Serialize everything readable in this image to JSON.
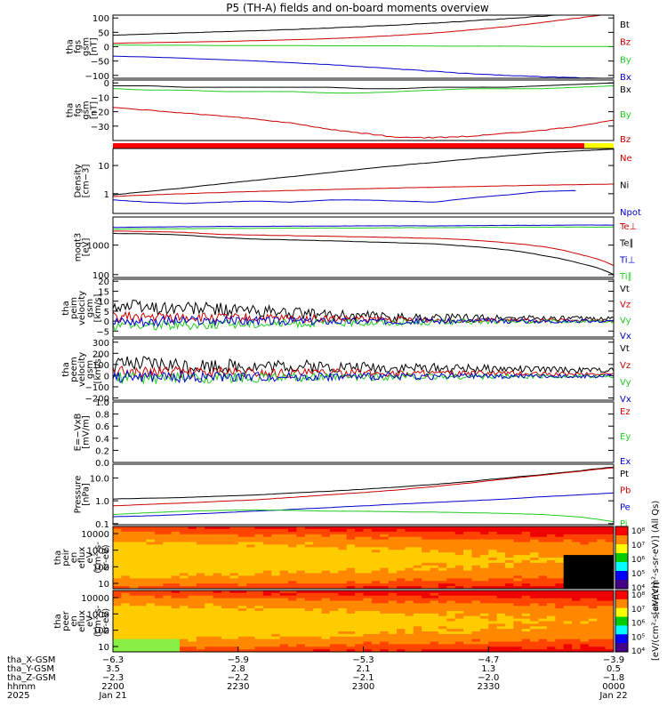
{
  "title": "P5 (TH-A) fields and on-board moments overview",
  "colors": {
    "black": "#000000",
    "red": "#cc0000",
    "green": "#22cc22",
    "blue": "#0000cc",
    "yellow": "#ffff00",
    "bar_red": "#ff0000"
  },
  "chart_data": [
    {
      "type": "line",
      "ylabel": [
        "tha",
        "fgs",
        "gsm",
        "[nT]"
      ],
      "yticks": [
        "100",
        "50",
        "0",
        "−50",
        "−100"
      ],
      "ylim": [
        -110,
        110
      ],
      "series": [
        {
          "name": "Bt",
          "color": "black",
          "values": [
            40,
            44,
            48,
            52,
            56,
            60,
            65,
            70,
            76,
            82,
            90,
            98,
            106,
            115,
            124
          ]
        },
        {
          "name": "Bz",
          "color": "red",
          "values": [
            12,
            14,
            16,
            18,
            21,
            24,
            28,
            33,
            40,
            48,
            58,
            70,
            84,
            100,
            115
          ]
        },
        {
          "name": "By",
          "color": "green",
          "values": [
            6,
            5,
            5,
            4,
            4,
            4,
            3,
            3,
            3,
            2,
            2,
            2,
            1,
            1,
            1
          ]
        },
        {
          "name": "Bx",
          "color": "blue",
          "values": [
            -33,
            -36,
            -40,
            -45,
            -50,
            -56,
            -62,
            -70,
            -78,
            -86,
            -94,
            -100,
            -105,
            -108,
            -110
          ]
        }
      ]
    },
    {
      "type": "line",
      "ylabel": [
        "tha",
        "fgs",
        "gsm",
        "[nT]"
      ],
      "yticks": [
        "0",
        "−10",
        "−20",
        "−30"
      ],
      "ylim": [
        -40,
        2
      ],
      "series": [
        {
          "name": "Bx",
          "color": "black",
          "values": [
            -2,
            -2,
            -3,
            -3,
            -3,
            -3,
            -3,
            -4,
            -4,
            -3,
            -3,
            -3,
            -2,
            -1,
            0
          ]
        },
        {
          "name": "By",
          "color": "green",
          "values": [
            -4,
            -5,
            -5,
            -6,
            -6,
            -6,
            -7,
            -7,
            -6,
            -5,
            -4,
            -4,
            -4,
            -3,
            -2
          ]
        },
        {
          "name": "Bz",
          "color": "red",
          "values": [
            -17,
            -19,
            -21,
            -23,
            -25,
            -28,
            -32,
            -35,
            -38,
            -38,
            -37,
            -35,
            -33,
            -30,
            -26
          ]
        }
      ]
    },
    {
      "type": "line",
      "ylabel": [
        "Density",
        "[cm−3]"
      ],
      "yticks": [
        "10",
        "1"
      ],
      "yscale": "log",
      "ylim": [
        0.2,
        40
      ],
      "series": [
        {
          "name": "Ne",
          "color": "red",
          "values": [
            0.8,
            0.9,
            1.0,
            1.1,
            1.2,
            1.3,
            1.4,
            1.5,
            1.6,
            1.7,
            1.8,
            1.9,
            2.0,
            2.1,
            2.2
          ]
        },
        {
          "name": "Ni",
          "color": "black",
          "values": [
            0.9,
            1.2,
            1.6,
            2.2,
            3.0,
            4.0,
            5.5,
            7.5,
            10,
            13,
            17,
            22,
            28,
            33,
            38
          ]
        },
        {
          "name": "Npot",
          "color": "blue",
          "values": [
            0.6,
            0.5,
            0.45,
            0.5,
            0.55,
            0.5,
            0.6,
            0.6,
            0.55,
            0.5,
            0.7,
            0.9,
            1.2,
            1.3,
            null
          ]
        }
      ]
    },
    {
      "type": "line",
      "ylabel": [
        "moqt3",
        "[eV]"
      ],
      "yticks": [
        "1000",
        "100"
      ],
      "yscale": "log",
      "ylim": [
        80,
        9000
      ],
      "series": [
        {
          "name": "Te⊥",
          "color": "red",
          "values": [
            3000,
            2900,
            2700,
            2300,
            2200,
            2100,
            2000,
            1900,
            1800,
            1700,
            1500,
            1200,
            900,
            500,
            200
          ]
        },
        {
          "name": "Te∥",
          "color": "black",
          "values": [
            2500,
            2400,
            2200,
            1800,
            1600,
            1500,
            1400,
            1300,
            1200,
            1100,
            900,
            700,
            450,
            250,
            100
          ]
        },
        {
          "name": "Ti⊥",
          "color": "blue",
          "values": [
            4000,
            4100,
            4200,
            4300,
            4300,
            4400,
            4400,
            4500,
            4500,
            4500,
            4600,
            4700,
            4700,
            4800,
            4800
          ]
        },
        {
          "name": "Ti∥",
          "color": "green",
          "values": [
            3500,
            3600,
            3600,
            3700,
            3700,
            3800,
            3800,
            3800,
            3900,
            3900,
            4000,
            4000,
            4100,
            4100,
            4100
          ]
        }
      ]
    },
    {
      "type": "line",
      "ylabel": [
        "tha",
        "peim",
        "velocity",
        "gsm",
        "[km/s]"
      ],
      "yticks": [
        "20",
        "15",
        "10",
        "5",
        "0",
        "−5"
      ],
      "ylim": [
        -8,
        21
      ],
      "series": [
        {
          "name": "Vt",
          "color": "black",
          "values": [
            8,
            7,
            6.5,
            6,
            5,
            4,
            3,
            2.5,
            2,
            1.8,
            1.6,
            1.5,
            1.4,
            1.3,
            1.2
          ]
        },
        {
          "name": "Vz",
          "color": "red",
          "values": [
            2,
            2,
            1.8,
            1.6,
            1.4,
            1.2,
            1,
            0.8,
            0.6,
            0.5,
            0.4,
            0.3,
            0.3,
            0.2,
            0.2
          ]
        },
        {
          "name": "Vy",
          "color": "green",
          "values": [
            -2,
            -2,
            -1.8,
            -1.6,
            -1.4,
            -1.2,
            -1,
            -0.8,
            -0.6,
            -0.5,
            -0.4,
            -0.3,
            -0.3,
            -0.2,
            -0.2
          ]
        },
        {
          "name": "Vx",
          "color": "blue",
          "values": [
            0,
            0,
            0,
            0,
            0,
            0,
            0,
            0,
            0,
            0,
            0,
            0,
            0,
            0,
            0
          ]
        }
      ]
    },
    {
      "type": "line",
      "ylabel": [
        "tha",
        "peem",
        "velocity",
        "gsm",
        "[km/s]"
      ],
      "yticks": [
        "300",
        "200",
        "100",
        "0",
        "−100",
        "−200"
      ],
      "ylim": [
        -220,
        330
      ],
      "series": [
        {
          "name": "Vt",
          "color": "black",
          "values": [
            90,
            100,
            95,
            90,
            85,
            85,
            80,
            75,
            70,
            70,
            65,
            60,
            55,
            50,
            50
          ]
        },
        {
          "name": "Vz",
          "color": "red",
          "values": [
            30,
            35,
            30,
            30,
            28,
            25,
            25,
            22,
            20,
            20,
            18,
            18,
            15,
            15,
            15
          ]
        },
        {
          "name": "Vy",
          "color": "green",
          "values": [
            -20,
            -25,
            -20,
            -20,
            -18,
            -15,
            -15,
            -12,
            -10,
            -10,
            -8,
            -8,
            -5,
            -5,
            -5
          ]
        },
        {
          "name": "Vx",
          "color": "blue",
          "values": [
            -10,
            -10,
            -10,
            -10,
            -10,
            -8,
            -8,
            -8,
            -6,
            -6,
            -5,
            -5,
            -5,
            -5,
            -5
          ]
        }
      ]
    },
    {
      "type": "line",
      "ylabel": [
        "E=−VxB",
        "[mV/m]"
      ],
      "yticks": [
        "1.0",
        "0.8",
        "0.6",
        "0.4",
        "0.2",
        "0.0"
      ],
      "ylim": [
        0,
        1.0
      ],
      "series": [
        {
          "name": "Ez",
          "color": "red",
          "values": []
        },
        {
          "name": "Ey",
          "color": "green",
          "values": []
        },
        {
          "name": "Ex",
          "color": "blue",
          "values": []
        }
      ]
    },
    {
      "type": "line",
      "ylabel": [
        "Pressure",
        "[nPa]"
      ],
      "yticks": [
        "10.0",
        "1.0",
        "0.1"
      ],
      "yscale": "log",
      "ylim": [
        0.09,
        40
      ],
      "series": [
        {
          "name": "Pt",
          "color": "black",
          "values": [
            1.2,
            1.3,
            1.4,
            1.6,
            1.8,
            2.2,
            2.6,
            3.2,
            4.0,
            5.2,
            7.0,
            10,
            14,
            20,
            30
          ]
        },
        {
          "name": "Pb",
          "color": "red",
          "values": [
            0.6,
            0.7,
            0.8,
            0.95,
            1.1,
            1.4,
            1.8,
            2.3,
            3.0,
            4.2,
            6.0,
            9,
            13,
            19,
            28
          ]
        },
        {
          "name": "Pe",
          "color": "blue",
          "values": [
            0.2,
            0.22,
            0.25,
            0.3,
            0.35,
            0.42,
            0.5,
            0.6,
            0.72,
            0.85,
            1.0,
            1.2,
            1.5,
            1.8,
            2.2
          ]
        },
        {
          "name": "Pi",
          "color": "green",
          "values": [
            0.25,
            0.3,
            0.35,
            0.38,
            0.4,
            0.38,
            0.35,
            0.35,
            0.33,
            0.32,
            0.3,
            0.28,
            0.25,
            0.2,
            0.12
          ]
        }
      ]
    },
    {
      "type": "heatmap",
      "ylabel": [
        "tha",
        "peir",
        "en",
        "eflux",
        "eV",
        "(cm²-s-",
        "sr-eV)"
      ],
      "yticks": [
        "10000",
        "1000",
        "100",
        "10"
      ],
      "colorbar_ticks": [
        "10⁸",
        "10⁷",
        "10⁶",
        "10⁵",
        "10⁴"
      ],
      "colorbar_label": "[eV/(cm²-s-sr-eV)] (All Qs)"
    },
    {
      "type": "heatmap",
      "ylabel": [
        "tha",
        "peer",
        "en",
        "eflux",
        "eV",
        "(cm²-s-",
        "sr-eV)"
      ],
      "yticks": [
        "10000",
        "1000",
        "100",
        "10"
      ],
      "colorbar_ticks": [
        "10⁸",
        "10⁷",
        "10⁶",
        "10⁵",
        "10⁴"
      ],
      "colorbar_label": "[eV/(cm²-s-sr-eV)]"
    }
  ],
  "xaxis": {
    "rows": [
      {
        "label": "tha_X-GSM",
        "values": [
          "−6.3",
          "−5.9",
          "−5.3",
          "−4.7",
          "−3.9"
        ]
      },
      {
        "label": "tha_Y-GSM",
        "values": [
          "3.5",
          "2.8",
          "2.1",
          "1.3",
          "0.5"
        ]
      },
      {
        "label": "tha_Z-GSM",
        "values": [
          "−2.3",
          "−2.2",
          "−2.1",
          "−2.0",
          "−1.8"
        ]
      },
      {
        "label": "hhmm",
        "values": [
          "2200",
          "2230",
          "2300",
          "2330",
          "0000"
        ]
      },
      {
        "label": "2025",
        "values": [
          "Jan 21",
          "",
          "",
          "",
          "Jan 22"
        ]
      }
    ]
  }
}
